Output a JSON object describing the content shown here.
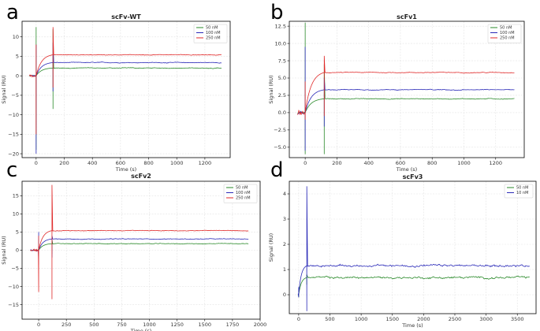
{
  "chart_data": [
    {
      "type": "line",
      "panel_label": "a",
      "title": "scFv-WT",
      "xlabel": "Time (s)",
      "ylabel": "Signal (RU)",
      "xlim": [
        -100,
        1380
      ],
      "ylim": [
        -21,
        14
      ],
      "xticks": [
        0,
        200,
        400,
        600,
        800,
        1000,
        1200
      ],
      "yticks": [
        -20,
        -15,
        -10,
        -5,
        0,
        5,
        10
      ],
      "ytick_labels": [
        "−20",
        "−15",
        "−10",
        "−5",
        "0",
        "5",
        "10"
      ],
      "grid": true,
      "legend_position": "top-right",
      "injection_start": 0,
      "injection_end": 120,
      "baseline": 0,
      "series": [
        {
          "name": "50 nM",
          "color": "#2a8a2a",
          "plateau": 2.0,
          "spike_start": [
            -19,
            12.5
          ],
          "spike_end": [
            -8.5,
            12
          ]
        },
        {
          "name": "100 nM",
          "color": "#2a2ab8",
          "plateau": 3.4,
          "spike_start": [
            -20,
            8
          ],
          "spike_end": [
            -4,
            8.5
          ]
        },
        {
          "name": "250 nM",
          "color": "#e02a2a",
          "plateau": 5.4,
          "spike_start": [
            -15,
            8
          ],
          "spike_end": [
            -3,
            12.5
          ]
        }
      ],
      "x_end": 1320,
      "noise": 0.08
    },
    {
      "type": "line",
      "panel_label": "b",
      "title": "scFv1",
      "xlabel": "Time (s)",
      "ylabel": "Signal (RU)",
      "xlim": [
        -100,
        1380
      ],
      "ylim": [
        -6.5,
        13.2
      ],
      "xticks": [
        0,
        200,
        400,
        600,
        800,
        1000,
        1200
      ],
      "yticks": [
        -5,
        -2.5,
        0,
        2.5,
        5,
        7.5,
        10,
        12.5
      ],
      "ytick_labels": [
        "−5.0",
        "−2.5",
        "0.0",
        "2.5",
        "5.0",
        "7.5",
        "10.0",
        "12.5"
      ],
      "grid": true,
      "legend_position": "top-right",
      "injection_start": 0,
      "injection_end": 120,
      "baseline": 0,
      "series": [
        {
          "name": "50 nM",
          "color": "#2a8a2a",
          "plateau": 2.0,
          "spike_start": [
            -6,
            13
          ],
          "spike_end": [
            -6,
            7
          ]
        },
        {
          "name": "100 nM",
          "color": "#2a2ab8",
          "plateau": 3.3,
          "spike_start": [
            -5.5,
            9.5
          ],
          "spike_end": [
            -2,
            5
          ]
        },
        {
          "name": "250 nM",
          "color": "#e02a2a",
          "plateau": 5.8,
          "spike_start": [
            -1,
            4.5
          ],
          "spike_end": [
            -0.5,
            8.2
          ]
        }
      ],
      "x_end": 1320,
      "noise": 0.05
    },
    {
      "type": "line",
      "panel_label": "c",
      "title": "scFv2",
      "xlabel": "Time (s)",
      "ylabel": "Signal (RU)",
      "xlim": [
        -150,
        2000
      ],
      "ylim": [
        -19,
        19
      ],
      "xticks": [
        0,
        250,
        500,
        750,
        1000,
        1250,
        1500,
        1750,
        2000
      ],
      "yticks": [
        -15,
        -10,
        -5,
        0,
        5,
        10,
        15
      ],
      "ytick_labels": [
        "−15",
        "−10",
        "−5",
        "0",
        "5",
        "10",
        "15"
      ],
      "grid": true,
      "legend_position": "top-right",
      "injection_start": 0,
      "injection_end": 120,
      "baseline": 0,
      "series": [
        {
          "name": "50 nM",
          "color": "#2a8a2a",
          "plateau": 1.8,
          "spike_start": [
            -3,
            3
          ],
          "spike_end": [
            -1,
            3
          ]
        },
        {
          "name": "100 nM",
          "color": "#2a2ab8",
          "plateau": 3.1,
          "spike_start": [
            -4,
            5
          ],
          "spike_end": [
            -2,
            4
          ]
        },
        {
          "name": "250 nM",
          "color": "#e02a2a",
          "plateau": 5.4,
          "spike_start": [
            -11.5,
            4
          ],
          "spike_end": [
            -13.5,
            18
          ]
        }
      ],
      "x_end": 1900,
      "noise": 0.08
    },
    {
      "type": "line",
      "panel_label": "d",
      "title": "scFv3",
      "xlabel": "Time (s)",
      "ylabel": "Signal (RU)",
      "xlim": [
        -150,
        3800
      ],
      "ylim": [
        -0.75,
        4.5
      ],
      "xticks": [
        0,
        500,
        1000,
        1500,
        2000,
        2500,
        3000,
        3500
      ],
      "yticks": [
        0,
        1,
        2,
        3,
        4
      ],
      "ytick_labels": [
        "0",
        "1",
        "2",
        "3",
        "4"
      ],
      "grid": true,
      "legend_position": "top-right",
      "injection_start": 0,
      "injection_end": 130,
      "baseline": 0,
      "series": [
        {
          "name": "50 nM",
          "color": "#2a8a2a",
          "plateau": 0.68,
          "spike_start": [
            -0.1,
            0.2
          ],
          "spike_end": [
            0.4,
            0.8
          ]
        },
        {
          "name": "10 nM",
          "color": "#2a2ab8",
          "plateau": 1.15,
          "spike_start": [
            -0.1,
            0.3
          ],
          "spike_end": [
            -0.65,
            4.3
          ]
        }
      ],
      "x_end": 3700,
      "noise": 0.04
    }
  ]
}
